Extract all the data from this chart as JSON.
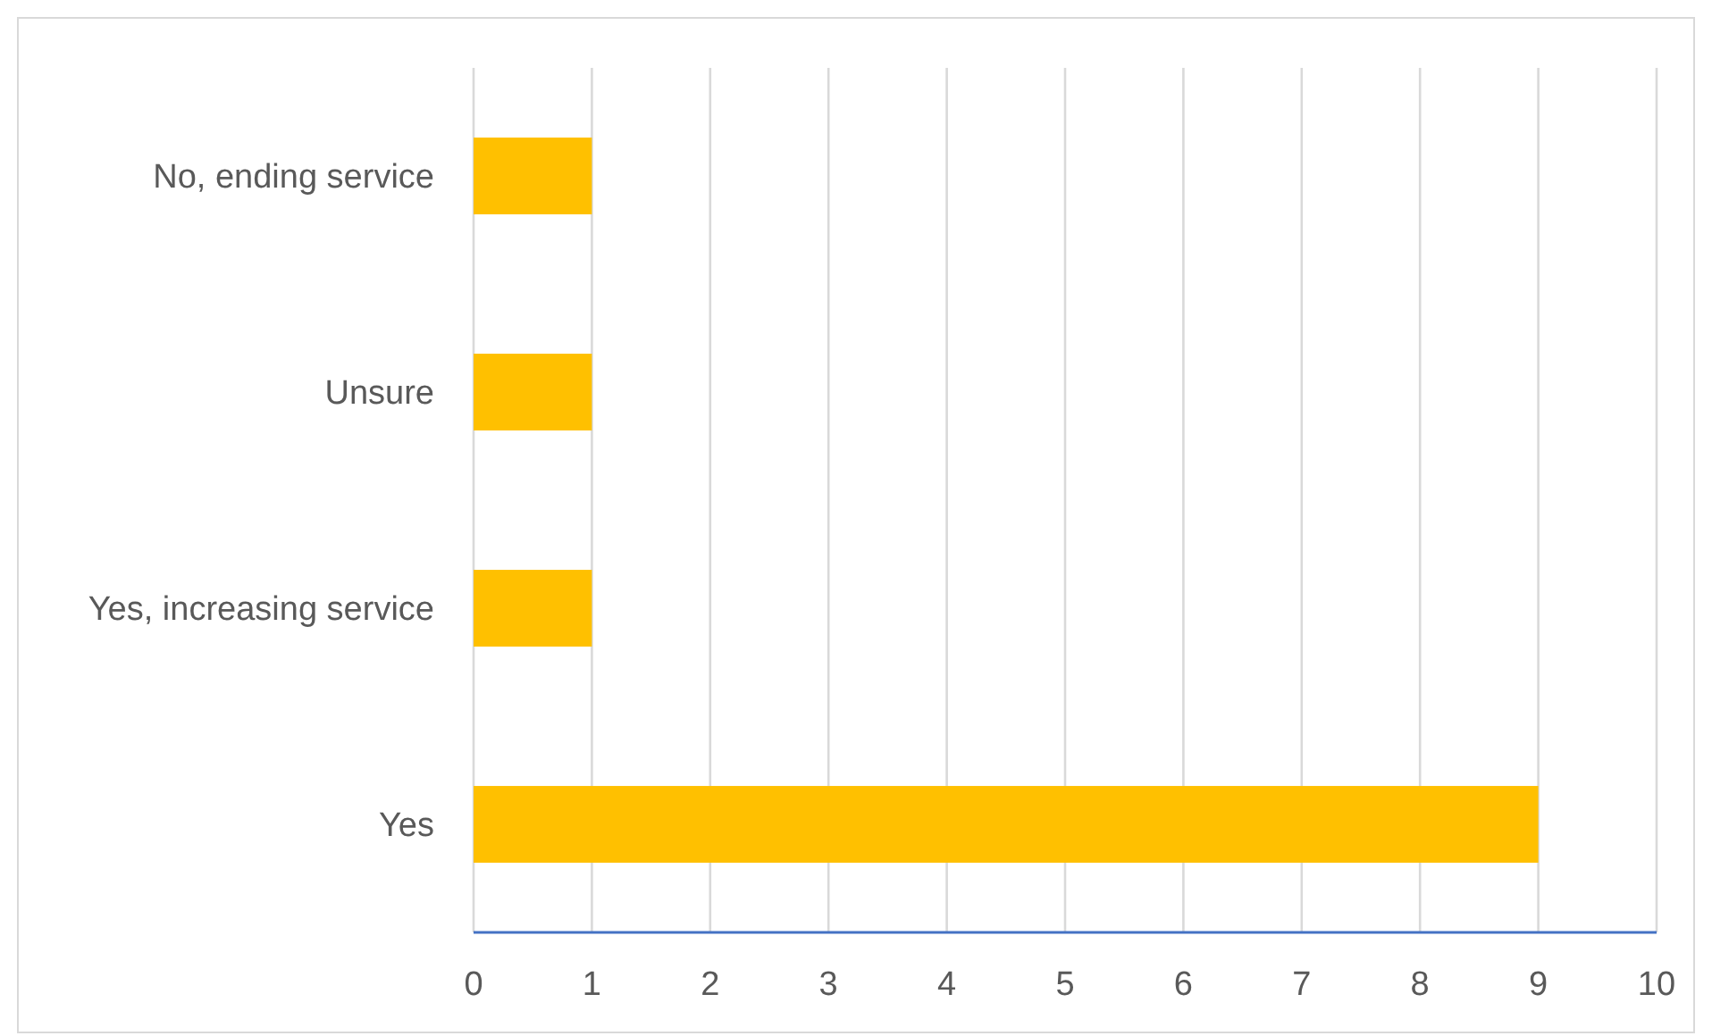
{
  "chart_data": {
    "type": "bar",
    "orientation": "horizontal",
    "categories": [
      "No, ending service",
      "Unsure",
      "Yes, increasing service",
      "Yes"
    ],
    "values": [
      1,
      1,
      1,
      9
    ],
    "color": "#ffc000",
    "xlim": [
      0,
      10
    ],
    "xticks": [
      0,
      1,
      2,
      3,
      4,
      5,
      6,
      7,
      8,
      9,
      10
    ],
    "grid": "x"
  }
}
